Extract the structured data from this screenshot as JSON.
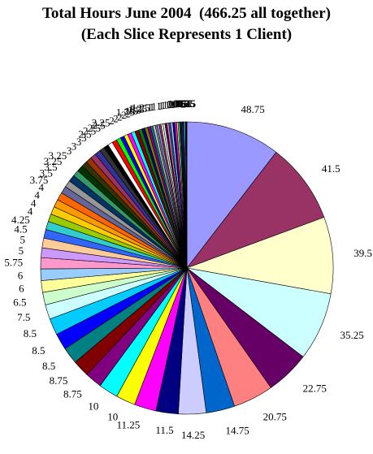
{
  "chart_data": {
    "type": "pie",
    "title": "Total Hours June 2004  (466.25 all together)",
    "subtitle": "(Each Slice Represents 1 Client)",
    "values": [
      48.75,
      41.5,
      39.5,
      35.25,
      22.75,
      20.75,
      14.75,
      14.25,
      11.5,
      11.25,
      10,
      10,
      8.75,
      8.75,
      8.5,
      8.5,
      8.5,
      7.5,
      6.5,
      6,
      6,
      5.75,
      5,
      5,
      4.5,
      4.25,
      4,
      4,
      4,
      4,
      3.75,
      3.5,
      3.5,
      3.25,
      3.25,
      3,
      3,
      3,
      3,
      2.5,
      2.5,
      2.5,
      2.5,
      2.25,
      2,
      2,
      2,
      2,
      2,
      1.75,
      1.5,
      1.5,
      1.5,
      1.25,
      1.25,
      1,
      1,
      1,
      1,
      1,
      1,
      1,
      1,
      1,
      1,
      1,
      0.75,
      0.75,
      0.5,
      0.5,
      0.5,
      0.5,
      0.5,
      0.5,
      0.25,
      0.25,
      0.25
    ],
    "labels": [
      "48.75",
      "41.5",
      "39.5",
      "35.25",
      "22.75",
      "20.75",
      "14.75",
      "14.25",
      "11.5",
      "11.25",
      "10",
      "10",
      "8.75",
      "8.75",
      "8.5",
      "8.5",
      "8.5",
      "7.5",
      "6.5",
      "6",
      "6",
      "5.75",
      "5",
      "5",
      "4.5",
      "4.25",
      "4",
      "4",
      "4",
      "4",
      "3.75",
      "3.5",
      "3.5",
      "3.25",
      "3.25",
      "3",
      "3",
      "3",
      "3",
      "2.5",
      "2.5",
      "2.5",
      "2.5",
      "2.25",
      "2",
      "2",
      "2",
      "2",
      "2",
      "1.75",
      "1.5",
      "1.5",
      "1.5",
      "1.25",
      "1.25",
      "1",
      "1",
      "1",
      "1",
      "1",
      "1",
      "1",
      "1",
      "1",
      "1",
      "1",
      "0.75",
      "0.75",
      "0.5",
      "0.5",
      "0.5",
      "0.5",
      "0.5",
      "0.5",
      "0.25",
      "0.25",
      "0.25"
    ],
    "colors": [
      "#9999FF",
      "#993366",
      "#FFFFCC",
      "#CCFFFF",
      "#660066",
      "#FF8080",
      "#0066CC",
      "#CCCCFF",
      "#000080",
      "#FF00FF",
      "#FFFF00",
      "#00FFFF",
      "#800080",
      "#800000",
      "#008080",
      "#0000FF",
      "#00CCFF",
      "#CCFFFF",
      "#CCFFCC",
      "#FFFF99",
      "#99CCFF",
      "#FF99CC",
      "#CC99FF",
      "#FFCC99",
      "#3366FF",
      "#33CCCC",
      "#99CC00",
      "#FFCC00",
      "#FF9900",
      "#FF6600",
      "#666699",
      "#969696",
      "#003366",
      "#339966",
      "#003300",
      "#333300",
      "#993300",
      "#993366",
      "#333399",
      "#333333",
      "#000000",
      "#FFFFFF",
      "#FF0000",
      "#00FF00",
      "#0000FF",
      "#FFFF00",
      "#FF00FF",
      "#00FFFF",
      "#800000",
      "#008000",
      "#000080",
      "#808000",
      "#800080",
      "#008080",
      "#C0C0C0",
      "#808080",
      "#9999FF",
      "#993366",
      "#FFFFCC",
      "#CCFFFF",
      "#660066",
      "#FF8080",
      "#0066CC",
      "#CCCCFF",
      "#000080",
      "#FF00FF",
      "#FFFF00",
      "#00FFFF",
      "#800080",
      "#800000",
      "#008080",
      "#0000FF",
      "#00CCFF",
      "#CCFFFF",
      "#CCFFCC",
      "#FFFF99",
      "#99CCFF"
    ],
    "start_angle_deg": 0,
    "direction": "clockwise",
    "legend": "none"
  }
}
